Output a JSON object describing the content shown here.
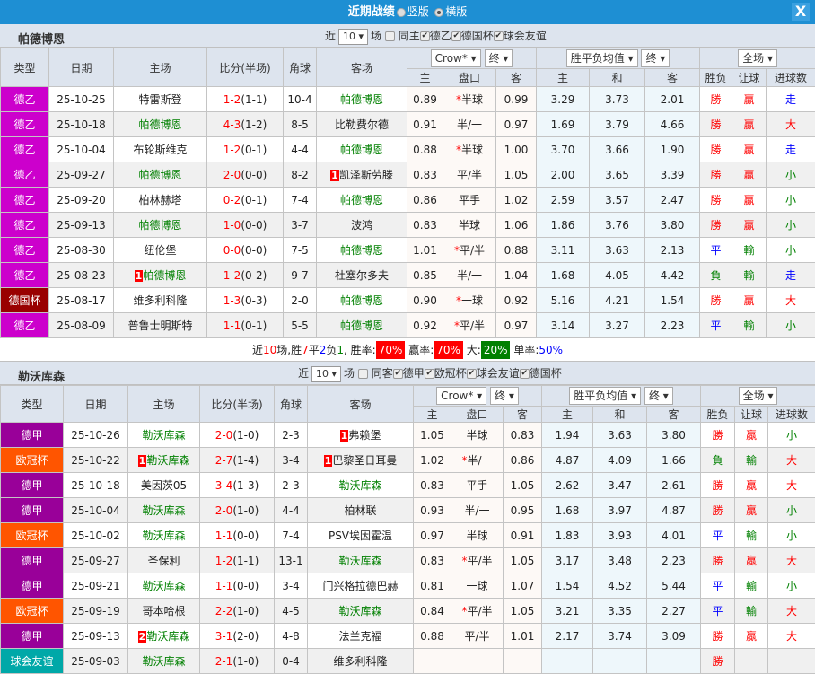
{
  "title": "近期战绩",
  "view_options": [
    "竖版",
    "横版"
  ],
  "view_selected": "横版",
  "close_label": "X",
  "colors": {
    "win": "#ff0000",
    "draw": "#0000ff",
    "loss": "#008000"
  },
  "sections": [
    {
      "team": "帕德博恩",
      "filter": {
        "prefix": "近",
        "count": "10",
        "suffix": "场",
        "same": "同主",
        "same_checked": false,
        "leagues": [
          "德乙",
          "德国杯",
          "球会友谊"
        ]
      },
      "headers": {
        "type": "类型",
        "date": "日期",
        "home": "主场",
        "score": "比分(半场)",
        "corner": "角球",
        "away": "客场",
        "company": "Crow*",
        "company_stage": "终",
        "odds_type": "胜平负均值",
        "odds_stage": "终",
        "scope": "全场",
        "sub": [
          "主",
          "盘口",
          "客",
          "主",
          "和",
          "客",
          "胜负",
          "让球",
          "进球数"
        ]
      },
      "rows": [
        {
          "type": "德乙",
          "tc": "#cc00cc",
          "date": "25-10-25",
          "home": "特雷斯登",
          "score": "1-2",
          "half": "(1-1)",
          "corner": "10-4",
          "away": "帕德博恩",
          "o": [
            "0.89",
            "*半球",
            "0.99"
          ],
          "e": [
            "3.29",
            "3.73",
            "2.01"
          ],
          "r": [
            "勝",
            "赢",
            "走"
          ]
        },
        {
          "type": "德乙",
          "tc": "#cc00cc",
          "date": "25-10-18",
          "home": "帕德博恩",
          "score": "4-3",
          "half": "(1-2)",
          "corner": "8-5",
          "away": "比勒费尔德",
          "o": [
            "0.91",
            "半/一",
            "0.97"
          ],
          "e": [
            "1.69",
            "3.79",
            "4.66"
          ],
          "r": [
            "勝",
            "赢",
            "大"
          ]
        },
        {
          "type": "德乙",
          "tc": "#cc00cc",
          "date": "25-10-04",
          "home": "布轮斯维克",
          "score": "1-2",
          "half": "(0-1)",
          "corner": "4-4",
          "away": "帕德博恩",
          "o": [
            "0.88",
            "*半球",
            "1.00"
          ],
          "e": [
            "3.70",
            "3.66",
            "1.90"
          ],
          "r": [
            "勝",
            "赢",
            "走"
          ]
        },
        {
          "type": "德乙",
          "tc": "#cc00cc",
          "date": "25-09-27",
          "home": "帕德博恩",
          "score": "2-0",
          "half": "(0-0)",
          "corner": "8-2",
          "away": "凯泽斯劳滕",
          "away_card": "1",
          "o": [
            "0.83",
            "平/半",
            "1.05"
          ],
          "e": [
            "2.00",
            "3.65",
            "3.39"
          ],
          "r": [
            "勝",
            "赢",
            "小"
          ]
        },
        {
          "type": "德乙",
          "tc": "#cc00cc",
          "date": "25-09-20",
          "home": "柏林赫塔",
          "score": "0-2",
          "half": "(0-1)",
          "corner": "7-4",
          "away": "帕德博恩",
          "o": [
            "0.86",
            "平手",
            "1.02"
          ],
          "e": [
            "2.59",
            "3.57",
            "2.47"
          ],
          "r": [
            "勝",
            "赢",
            "小"
          ]
        },
        {
          "type": "德乙",
          "tc": "#cc00cc",
          "date": "25-09-13",
          "home": "帕德博恩",
          "score": "1-0",
          "half": "(0-0)",
          "corner": "3-7",
          "away": "波鸿",
          "o": [
            "0.83",
            "半球",
            "1.06"
          ],
          "e": [
            "1.86",
            "3.76",
            "3.80"
          ],
          "r": [
            "勝",
            "赢",
            "小"
          ]
        },
        {
          "type": "德乙",
          "tc": "#cc00cc",
          "date": "25-08-30",
          "home": "纽伦堡",
          "score": "0-0",
          "half": "(0-0)",
          "corner": "7-5",
          "away": "帕德博恩",
          "o": [
            "1.01",
            "*平/半",
            "0.88"
          ],
          "e": [
            "3.11",
            "3.63",
            "2.13"
          ],
          "r": [
            "平",
            "输",
            "小"
          ]
        },
        {
          "type": "德乙",
          "tc": "#cc00cc",
          "date": "25-08-23",
          "home": "帕德博恩",
          "home_card": "1",
          "score": "1-2",
          "half": "(0-2)",
          "corner": "9-7",
          "away": "杜塞尔多夫",
          "o": [
            "0.85",
            "半/一",
            "1.04"
          ],
          "e": [
            "1.68",
            "4.05",
            "4.42"
          ],
          "r": [
            "負",
            "输",
            "走"
          ]
        },
        {
          "type": "德国杯",
          "tc": "#990000",
          "date": "25-08-17",
          "home": "维多利科隆",
          "score": "1-3",
          "half": "(0-3)",
          "corner": "2-0",
          "away": "帕德博恩",
          "o": [
            "0.90",
            "*一球",
            "0.92"
          ],
          "e": [
            "5.16",
            "4.21",
            "1.54"
          ],
          "r": [
            "勝",
            "赢",
            "大"
          ]
        },
        {
          "type": "德乙",
          "tc": "#cc00cc",
          "date": "25-08-09",
          "home": "普鲁士明斯特",
          "score": "1-1",
          "half": "(0-1)",
          "corner": "5-5",
          "away": "帕德博恩",
          "o": [
            "0.92",
            "*平/半",
            "0.97"
          ],
          "e": [
            "3.14",
            "3.27",
            "2.23"
          ],
          "r": [
            "平",
            "输",
            "小"
          ]
        }
      ],
      "summary": {
        "p1": "近",
        "n": "10",
        "p2": "场,胜",
        "w": "7",
        "p3": "平",
        "d": "2",
        "p4": "负",
        "l": "1",
        "p5": ", 胜率:",
        "win_rate": "70%",
        "p6": "赢率:",
        "ah_rate": "70%",
        "p7": "大:",
        "over_rate": "20%",
        "p8": "单率:",
        "odd_rate": "50%"
      }
    },
    {
      "team": "勒沃库森",
      "filter": {
        "prefix": "近",
        "count": "10",
        "suffix": "场",
        "same": "同客",
        "same_checked": false,
        "leagues": [
          "德甲",
          "欧冠杯",
          "球会友谊",
          "德国杯"
        ]
      },
      "headers": {
        "type": "类型",
        "date": "日期",
        "home": "主场",
        "score": "比分(半场)",
        "corner": "角球",
        "away": "客场",
        "company": "Crow*",
        "company_stage": "终",
        "odds_type": "胜平负均值",
        "odds_stage": "终",
        "scope": "全场",
        "sub": [
          "主",
          "盘口",
          "客",
          "主",
          "和",
          "客",
          "胜负",
          "让球",
          "进球数"
        ]
      },
      "rows": [
        {
          "type": "德甲",
          "tc": "#990099",
          "date": "25-10-26",
          "home": "勒沃库森",
          "score": "2-0",
          "half": "(1-0)",
          "corner": "2-3",
          "away": "弗赖堡",
          "away_card": "1",
          "o": [
            "1.05",
            "半球",
            "0.83"
          ],
          "e": [
            "1.94",
            "3.63",
            "3.80"
          ],
          "r": [
            "勝",
            "赢",
            "小"
          ]
        },
        {
          "type": "欧冠杯",
          "tc": "#ff5500",
          "date": "25-10-22",
          "home": "勒沃库森",
          "home_card": "1",
          "score": "2-7",
          "half": "(1-4)",
          "corner": "3-4",
          "away": "巴黎圣日耳曼",
          "away_card": "1",
          "o": [
            "1.02",
            "*半/一",
            "0.86"
          ],
          "e": [
            "4.87",
            "4.09",
            "1.66"
          ],
          "r": [
            "負",
            "输",
            "大"
          ]
        },
        {
          "type": "德甲",
          "tc": "#990099",
          "date": "25-10-18",
          "home": "美因茨05",
          "score": "3-4",
          "half": "(1-3)",
          "corner": "2-3",
          "away": "勒沃库森",
          "o": [
            "0.83",
            "平手",
            "1.05"
          ],
          "e": [
            "2.62",
            "3.47",
            "2.61"
          ],
          "r": [
            "勝",
            "赢",
            "大"
          ]
        },
        {
          "type": "德甲",
          "tc": "#990099",
          "date": "25-10-04",
          "home": "勒沃库森",
          "score": "2-0",
          "half": "(1-0)",
          "corner": "4-4",
          "away": "柏林联",
          "o": [
            "0.93",
            "半/一",
            "0.95"
          ],
          "e": [
            "1.68",
            "3.97",
            "4.87"
          ],
          "r": [
            "勝",
            "赢",
            "小"
          ]
        },
        {
          "type": "欧冠杯",
          "tc": "#ff5500",
          "date": "25-10-02",
          "home": "勒沃库森",
          "score": "1-1",
          "half": "(0-0)",
          "corner": "7-4",
          "away": "PSV埃因霍温",
          "o": [
            "0.97",
            "半球",
            "0.91"
          ],
          "e": [
            "1.83",
            "3.93",
            "4.01"
          ],
          "r": [
            "平",
            "输",
            "小"
          ]
        },
        {
          "type": "德甲",
          "tc": "#990099",
          "date": "25-09-27",
          "home": "圣保利",
          "score": "1-2",
          "half": "(1-1)",
          "corner": "13-1",
          "away": "勒沃库森",
          "o": [
            "0.83",
            "*平/半",
            "1.05"
          ],
          "e": [
            "3.17",
            "3.48",
            "2.23"
          ],
          "r": [
            "勝",
            "赢",
            "大"
          ]
        },
        {
          "type": "德甲",
          "tc": "#990099",
          "date": "25-09-21",
          "home": "勒沃库森",
          "score": "1-1",
          "half": "(0-0)",
          "corner": "3-4",
          "away": "门兴格拉德巴赫",
          "o": [
            "0.81",
            "一球",
            "1.07"
          ],
          "e": [
            "1.54",
            "4.52",
            "5.44"
          ],
          "r": [
            "平",
            "输",
            "小"
          ]
        },
        {
          "type": "欧冠杯",
          "tc": "#ff5500",
          "date": "25-09-19",
          "home": "哥本哈根",
          "score": "2-2",
          "half": "(1-0)",
          "corner": "4-5",
          "away": "勒沃库森",
          "o": [
            "0.84",
            "*平/半",
            "1.05"
          ],
          "e": [
            "3.21",
            "3.35",
            "2.27"
          ],
          "r": [
            "平",
            "输",
            "大"
          ]
        },
        {
          "type": "德甲",
          "tc": "#990099",
          "date": "25-09-13",
          "home": "勒沃库森",
          "home_card": "2",
          "score": "3-1",
          "half": "(2-0)",
          "corner": "4-8",
          "away": "法兰克福",
          "o": [
            "0.88",
            "平/半",
            "1.01"
          ],
          "e": [
            "2.17",
            "3.74",
            "3.09"
          ],
          "r": [
            "勝",
            "赢",
            "大"
          ]
        },
        {
          "type": "球会友谊",
          "tc": "#00a8a8",
          "date": "25-09-03",
          "home": "勒沃库森",
          "score": "2-1",
          "half": "(1-0)",
          "corner": "0-4",
          "away": "维多利科隆",
          "o": [
            "",
            "",
            ""
          ],
          "e": [
            "",
            "",
            ""
          ],
          "r": [
            "勝",
            "",
            ""
          ]
        }
      ]
    }
  ]
}
